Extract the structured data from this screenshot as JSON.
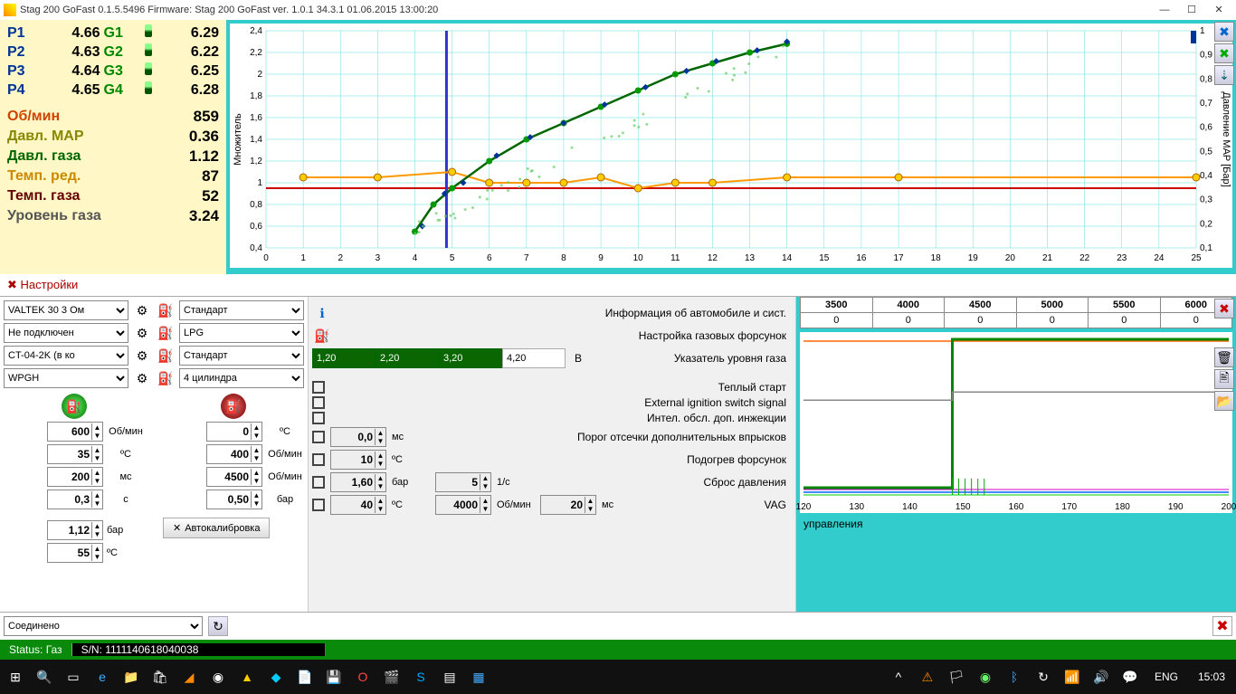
{
  "window": {
    "title": "Stag 200 GoFast 0.1.5.5496 Firmware: Stag 200 GoFast  ver. 1.0.1  34.3.1   01.06.2015 13:00:20"
  },
  "injectors": {
    "rows": [
      {
        "p": "P1",
        "pv": "4.66",
        "g": "G1",
        "gv": "6.29"
      },
      {
        "p": "P2",
        "pv": "4.63",
        "g": "G2",
        "gv": "6.22"
      },
      {
        "p": "P3",
        "pv": "4.64",
        "g": "G3",
        "gv": "6.25"
      },
      {
        "p": "P4",
        "pv": "4.65",
        "g": "G4",
        "gv": "6.28"
      }
    ]
  },
  "params": [
    {
      "label": "Об/мин",
      "value": "859",
      "color": "#cc4400"
    },
    {
      "label": "Давл. MAP",
      "value": "0.36",
      "color": "#888800"
    },
    {
      "label": "Давл. газа",
      "value": "1.12",
      "color": "#006600"
    },
    {
      "label": "Темп. ред.",
      "value": "87",
      "color": "#cc8800"
    },
    {
      "label": "Темп. газа",
      "value": "52",
      "color": "#660000"
    },
    {
      "label": "Уровень газа",
      "value": "3.24",
      "color": "#555555"
    }
  ],
  "chart": {
    "y_left_label": "Множитель",
    "y_right_label": "Давление MAP [Бар]",
    "y_left_ticks": [
      "2,4",
      "2,2",
      "2",
      "1,8",
      "1,6",
      "1,4",
      "1,2",
      "1",
      "0,8",
      "0,6",
      "0,4"
    ],
    "y_right_ticks": [
      "1",
      "0,9",
      "0,8",
      "0,7",
      "0,6",
      "0,5",
      "0,4",
      "0,3",
      "0,2",
      "0,1"
    ],
    "x_ticks": [
      "0",
      "1",
      "2",
      "3",
      "4",
      "5",
      "6",
      "7",
      "8",
      "9",
      "10",
      "11",
      "12",
      "13",
      "14",
      "15",
      "16",
      "17",
      "18",
      "19",
      "20",
      "21",
      "22",
      "23",
      "24",
      "25"
    ],
    "cursor_x": 4.85,
    "map_points": [
      {
        "x": 1,
        "y": 1.05
      },
      {
        "x": 3,
        "y": 1.05
      },
      {
        "x": 5,
        "y": 1.1
      },
      {
        "x": 6,
        "y": 1.0
      },
      {
        "x": 7,
        "y": 1.0
      },
      {
        "x": 8,
        "y": 1.0
      },
      {
        "x": 9,
        "y": 1.05
      },
      {
        "x": 10,
        "y": 0.95
      },
      {
        "x": 11,
        "y": 1.0
      },
      {
        "x": 12,
        "y": 1.0
      },
      {
        "x": 14,
        "y": 1.05
      },
      {
        "x": 17,
        "y": 1.05
      },
      {
        "x": 25,
        "y": 1.05
      }
    ],
    "mult_points": [
      {
        "x": 4,
        "y": 0.55
      },
      {
        "x": 4.5,
        "y": 0.8
      },
      {
        "x": 5,
        "y": 0.95
      },
      {
        "x": 6,
        "y": 1.2
      },
      {
        "x": 7,
        "y": 1.4
      },
      {
        "x": 8,
        "y": 1.55
      },
      {
        "x": 9,
        "y": 1.7
      },
      {
        "x": 10,
        "y": 1.85
      },
      {
        "x": 11,
        "y": 2.0
      },
      {
        "x": 12,
        "y": 2.1
      },
      {
        "x": 13,
        "y": 2.2
      },
      {
        "x": 14,
        "y": 2.28
      }
    ],
    "blue_points": [
      {
        "x": 4.2,
        "y": 0.6
      },
      {
        "x": 4.8,
        "y": 0.9
      },
      {
        "x": 5.3,
        "y": 1.0
      },
      {
        "x": 6.2,
        "y": 1.25
      },
      {
        "x": 7.1,
        "y": 1.42
      },
      {
        "x": 8.0,
        "y": 1.55
      },
      {
        "x": 9.1,
        "y": 1.72
      },
      {
        "x": 10.2,
        "y": 1.88
      },
      {
        "x": 11.3,
        "y": 2.03
      },
      {
        "x": 12.1,
        "y": 2.12
      },
      {
        "x": 13.2,
        "y": 2.22
      },
      {
        "x": 14.0,
        "y": 2.3
      }
    ],
    "red_line_y": 0.95,
    "colors": {
      "grid": "#66dddd",
      "map_line": "#ff9900",
      "map_marker": "#ffcc00",
      "mult_line": "#006600",
      "mult_marker": "#009900",
      "blue_marker": "#003399",
      "red_line": "#cc0000",
      "cursor": "#3333cc"
    }
  },
  "settings": {
    "header": "Настройки",
    "left_combos": [
      "VALTEK 30 3 Ом",
      "Не подключен",
      "CT-04-2K (в ко",
      "WPGH"
    ],
    "right_combos": [
      "Стандарт",
      "LPG",
      "Стандарт",
      "4 цилиндра"
    ],
    "left_vals": [
      {
        "v": "600",
        "u": "Об/мин"
      },
      {
        "v": "35",
        "u": "ºC"
      },
      {
        "v": "200",
        "u": "мс"
      },
      {
        "v": "0,3",
        "u": "с"
      }
    ],
    "right_vals": [
      {
        "v": "0",
        "u": "ºC"
      },
      {
        "v": "400",
        "u": "Об/мин"
      },
      {
        "v": "4500",
        "u": "Об/мин"
      },
      {
        "v": "0,50",
        "u": "бар"
      }
    ],
    "bottom_vals": [
      {
        "v": "1,12",
        "u": "бар"
      },
      {
        "v": "55",
        "u": "ºC"
      }
    ],
    "autocal": "Автокалибровка",
    "volt_cells": [
      "1,20",
      "2,20",
      "3,20",
      "4,20"
    ],
    "volt_unit": "В",
    "info_lines": [
      "Информация об автомобиле и сист.",
      "Настройка газовых форсунок",
      "Указатель уровня газа"
    ],
    "options": [
      {
        "label": "Теплый старт",
        "fields": []
      },
      {
        "label": "External ignition switch signal",
        "fields": []
      },
      {
        "label": "Интел. обсл. доп. инжекции",
        "fields": []
      },
      {
        "label": "Порог отсечки дополнительных впрысков",
        "fields": [
          {
            "v": "0,0",
            "u": "мс"
          }
        ]
      },
      {
        "label": "Подогрев форсунок",
        "fields": [
          {
            "v": "10",
            "u": "ºC"
          }
        ]
      },
      {
        "label": "Сброс давления",
        "fields": [
          {
            "v": "1,60",
            "u": "бар"
          },
          {
            "v": "5",
            "u": "1/c"
          }
        ]
      },
      {
        "label": "VAG",
        "fields": [
          {
            "v": "40",
            "u": "ºC"
          },
          {
            "v": "4000",
            "u": "Об/мин"
          },
          {
            "v": "20",
            "u": "мс"
          }
        ]
      }
    ]
  },
  "rpm_table": {
    "headers": [
      "3500",
      "4000",
      "4500",
      "5000",
      "5500",
      "6000"
    ],
    "row": [
      "0",
      "0",
      "0",
      "0",
      "0",
      "0"
    ]
  },
  "osc": {
    "x_ticks": [
      "120",
      "130",
      "140",
      "150",
      "160",
      "170",
      "180",
      "190",
      "200"
    ],
    "cursor_x": 148,
    "label_below": "управления"
  },
  "connection": {
    "status": "Соединено"
  },
  "statusbar": {
    "status": "Status: Газ",
    "sn": "S/N: 1111140618040038"
  },
  "taskbar": {
    "lang": "ENG",
    "time": "15:03"
  }
}
